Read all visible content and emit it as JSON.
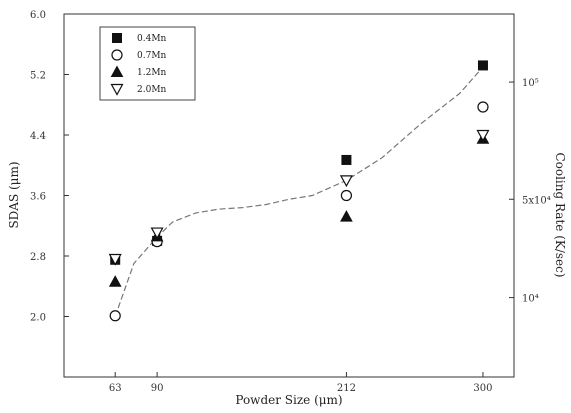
{
  "chart_data": {
    "type": "scatter",
    "title": "",
    "xlabel": "Powder Size (μm)",
    "ylabel": "SDAS (μm)",
    "y2label": "Cooling Rate (K/sec)",
    "x_categories": [
      "63",
      "90",
      "212",
      "300"
    ],
    "x_values": [
      63,
      90,
      212,
      300
    ],
    "xlim": [
      30,
      320
    ],
    "ylim": [
      1.2,
      6.0
    ],
    "yticks": [
      2.0,
      2.8,
      3.6,
      4.4,
      5.2,
      6.0
    ],
    "ytick_labels": [
      "2.0",
      "2.8",
      "3.6",
      "4.4",
      "5.2",
      "6.0"
    ],
    "y2_ticks": [
      {
        "label": "10⁴",
        "sdas": 2.25
      },
      {
        "label": "5x10⁴",
        "sdas": 3.55
      },
      {
        "label": "10⁵",
        "sdas": 5.1
      }
    ],
    "grid": false,
    "legend_position": "top-left",
    "series": [
      {
        "name": "0.4Mn",
        "marker": "square-filled",
        "values": [
          2.75,
          3.0,
          4.07,
          5.32
        ]
      },
      {
        "name": "0.7Mn",
        "marker": "circle-open",
        "values": [
          2.01,
          2.99,
          3.6,
          4.77
        ]
      },
      {
        "name": "1.2Mn",
        "marker": "triangle-up-filled",
        "values": [
          2.46,
          3.06,
          3.32,
          4.35
        ]
      },
      {
        "name": "2.0Mn",
        "marker": "triangle-down-open",
        "values": [
          2.76,
          3.11,
          3.8,
          4.4
        ]
      }
    ],
    "cooling_rate_curve": [
      [
        63,
        2.0
      ],
      [
        75,
        2.7
      ],
      [
        90,
        3.05
      ],
      [
        100,
        3.25
      ],
      [
        115,
        3.37
      ],
      [
        130,
        3.42
      ],
      [
        145,
        3.44
      ],
      [
        160,
        3.48
      ],
      [
        175,
        3.55
      ],
      [
        190,
        3.6
      ],
      [
        212,
        3.8
      ],
      [
        235,
        4.1
      ],
      [
        260,
        4.55
      ],
      [
        285,
        4.95
      ],
      [
        300,
        5.3
      ]
    ]
  }
}
